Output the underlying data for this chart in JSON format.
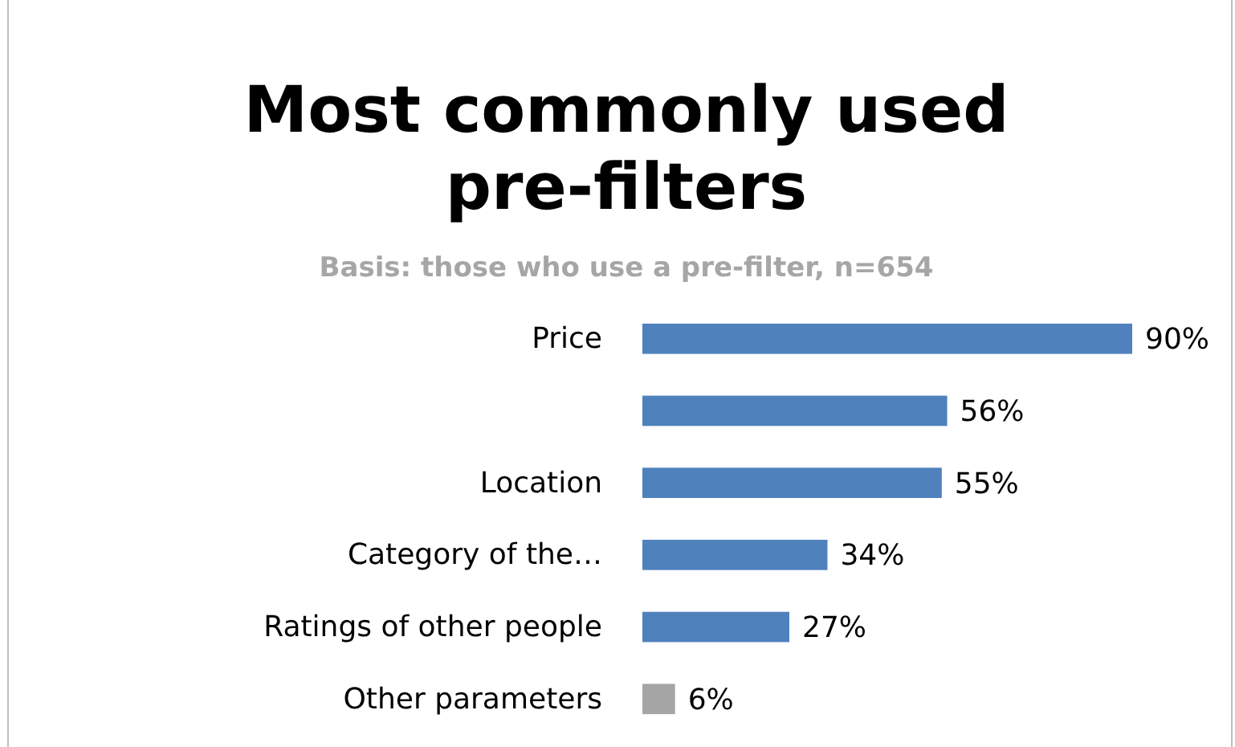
{
  "chart_data": {
    "type": "bar",
    "orientation": "horizontal",
    "title": "Most commonly used pre-filters",
    "subtitle": "Basis: those who use a pre-filter, n=654",
    "categories": [
      "Price",
      null,
      "Location",
      "Category of the…",
      "Ratings of other people",
      "Other parameters"
    ],
    "values": [
      90,
      56,
      55,
      34,
      27,
      6
    ],
    "colors": [
      "#4f81bd",
      "#4f81bd",
      "#4f81bd",
      "#4f81bd",
      "#4f81bd",
      "#a5a5a5"
    ],
    "data_labels": true,
    "value_labels": [
      "90%",
      "56%",
      "55%",
      "34%",
      "27%",
      "6%"
    ]
  }
}
